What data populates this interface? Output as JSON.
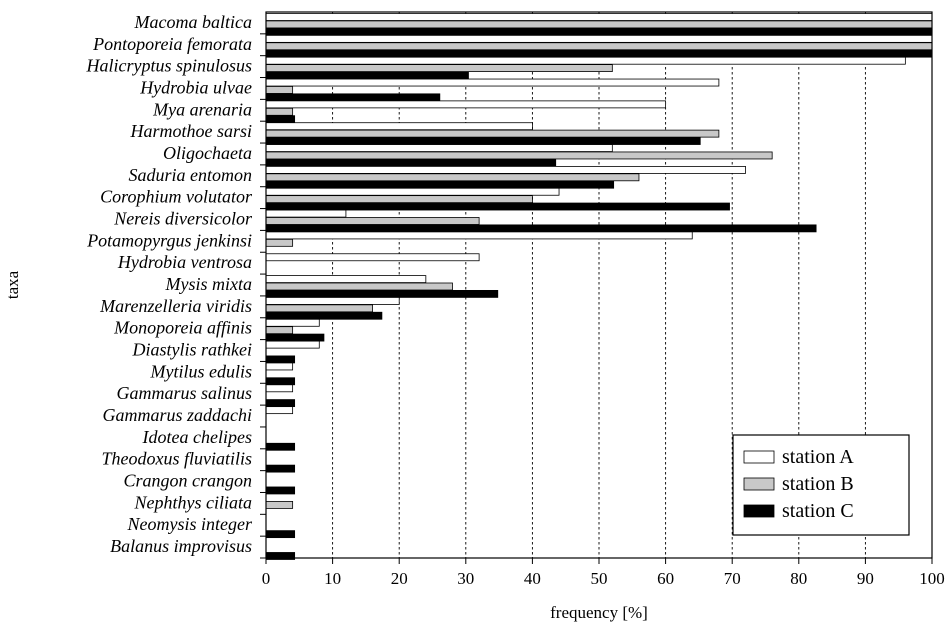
{
  "chart_data": {
    "type": "bar",
    "orientation": "horizontal",
    "xlabel": "frequency [%]",
    "ylabel": "taxa",
    "xlim": [
      0,
      100
    ],
    "x_ticks": [
      "0",
      "10",
      "20",
      "30",
      "40",
      "50",
      "60",
      "70",
      "80",
      "90",
      "100"
    ],
    "grid": "vertical dashed at each tick",
    "legend_position": "bottom-right",
    "categories": [
      "Macoma baltica",
      "Pontoporeia femorata",
      "Halicryptus spinulosus",
      "Hydrobia ulvae",
      "Mya arenaria",
      "Harmothoe sarsi",
      "Oligochaeta",
      "Saduria entomon",
      "Corophium volutator",
      "Nereis diversicolor",
      "Potamopyrgus jenkinsi",
      "Hydrobia ventrosa",
      "Mysis mixta",
      "Marenzelleria viridis",
      "Monoporeia affinis",
      "Diastylis rathkei",
      "Mytilus edulis",
      "Gammarus salinus",
      "Gammarus zaddachi",
      "Idotea chelipes",
      "Theodoxus fluviatilis",
      "Crangon crangon",
      "Nephthys ciliata",
      "Neomysis integer",
      "Balanus improvisus"
    ],
    "series": [
      {
        "name": "station A",
        "color": "#ffffff",
        "values": [
          100,
          100,
          96,
          68,
          60,
          40,
          52,
          72,
          44,
          12,
          64,
          32,
          24,
          20,
          8,
          8,
          4,
          4,
          4,
          0,
          0,
          0,
          0,
          0,
          0
        ]
      },
      {
        "name": "station B",
        "color": "#c8c8c8",
        "values": [
          100,
          100,
          52,
          4,
          4,
          68,
          76,
          56,
          40,
          32,
          4,
          0,
          28,
          16,
          4,
          0,
          0,
          0,
          0,
          0,
          0,
          0,
          4,
          0,
          0
        ]
      },
      {
        "name": "station C",
        "color": "#000000",
        "values": [
          100,
          100,
          30.4,
          26.1,
          4.3,
          65.2,
          43.5,
          52.2,
          69.6,
          82.6,
          0,
          0,
          34.8,
          17.4,
          8.7,
          4.3,
          4.3,
          4.3,
          0,
          4.3,
          4.3,
          4.3,
          0,
          4.3,
          4.3
        ]
      }
    ]
  }
}
